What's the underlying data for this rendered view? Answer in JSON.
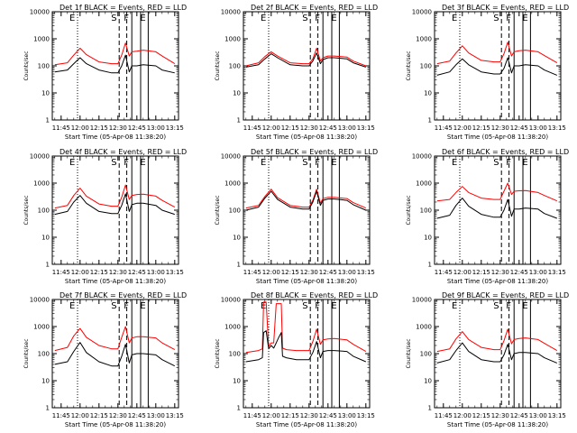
{
  "figure": {
    "xlabel": "Start Time (05-Apr-08 11:38:20)",
    "ylabel": "Counts/sec",
    "x_ticks": [
      "11:45",
      "12:00",
      "12:15",
      "12:30",
      "12:45",
      "13:00",
      "13:15"
    ],
    "y_ticks": [
      "1",
      "10",
      "100",
      "1000",
      "10000"
    ],
    "marker_labels": [
      "E",
      "S",
      "F",
      "E"
    ],
    "colors": {
      "events": "#000000",
      "lld": "#ff0000",
      "axes": "#000000",
      "background": "#ffffff"
    }
  },
  "chart_data": [
    {
      "type": "line",
      "title": "Det 1f BLACK = Events, RED = LLD",
      "xlabel": "Start Time (05-Apr-08 11:38:20)",
      "ylabel": "Counts/sec",
      "yscale": "log",
      "ylim": [
        1,
        10000
      ],
      "xlim": [
        "11:38",
        "13:18"
      ],
      "series": [
        {
          "name": "Events",
          "color": "#000000",
          "x": [
            "11:40",
            "11:50",
            "11:55",
            "12:00",
            "12:05",
            "12:15",
            "12:25",
            "12:30",
            "12:33",
            "12:36",
            "12:39",
            "12:41",
            "12:45",
            "12:50",
            "13:00",
            "13:05",
            "13:15"
          ],
          "y": [
            60,
            70,
            120,
            200,
            120,
            70,
            55,
            55,
            100,
            250,
            60,
            100,
            100,
            110,
            100,
            70,
            55
          ]
        },
        {
          "name": "LLD",
          "color": "#ff0000",
          "x": [
            "11:40",
            "11:50",
            "11:55",
            "12:00",
            "12:05",
            "12:15",
            "12:25",
            "12:30",
            "12:33",
            "12:36",
            "12:39",
            "12:41",
            "12:45",
            "12:50",
            "13:00",
            "13:05",
            "13:15"
          ],
          "y": [
            110,
            130,
            250,
            450,
            260,
            140,
            120,
            120,
            250,
            700,
            230,
            330,
            350,
            380,
            330,
            230,
            120
          ]
        }
      ]
    },
    {
      "type": "line",
      "title": "Det 2f BLACK = Events, RED = LLD",
      "xlabel": "Start Time (05-Apr-08 11:38:20)",
      "ylabel": "Counts/sec",
      "yscale": "log",
      "ylim": [
        1,
        10000
      ],
      "xlim": [
        "11:38",
        "13:18"
      ],
      "series": [
        {
          "name": "Events",
          "color": "#000000",
          "x": [
            "11:40",
            "11:50",
            "11:55",
            "12:00",
            "12:05",
            "12:15",
            "12:25",
            "12:30",
            "12:33",
            "12:36",
            "12:39",
            "12:41",
            "12:45",
            "12:50",
            "13:00",
            "13:05",
            "13:15"
          ],
          "y": [
            90,
            110,
            180,
            280,
            200,
            110,
            100,
            100,
            150,
            300,
            120,
            170,
            200,
            200,
            180,
            130,
            90
          ]
        },
        {
          "name": "LLD",
          "color": "#ff0000",
          "x": [
            "11:40",
            "11:50",
            "11:55",
            "12:00",
            "12:05",
            "12:15",
            "12:25",
            "12:30",
            "12:33",
            "12:36",
            "12:39",
            "12:41",
            "12:45",
            "12:50",
            "13:00",
            "13:05",
            "13:15"
          ],
          "y": [
            100,
            130,
            220,
            330,
            230,
            130,
            120,
            120,
            180,
            450,
            150,
            200,
            230,
            230,
            210,
            150,
            100
          ]
        }
      ]
    },
    {
      "type": "line",
      "title": "Det 3f BLACK = Events, RED = LLD",
      "xlabel": "Start Time (05-Apr-08 11:38:20)",
      "ylabel": "Counts/sec",
      "yscale": "log",
      "ylim": [
        1,
        10000
      ],
      "xlim": [
        "11:38",
        "13:18"
      ],
      "series": [
        {
          "name": "Events",
          "color": "#000000",
          "x": [
            "11:40",
            "11:50",
            "11:55",
            "12:00",
            "12:05",
            "12:15",
            "12:25",
            "12:30",
            "12:33",
            "12:36",
            "12:39",
            "12:41",
            "12:45",
            "12:50",
            "13:00",
            "13:05",
            "13:15"
          ],
          "y": [
            45,
            60,
            110,
            180,
            110,
            60,
            50,
            50,
            80,
            200,
            55,
            100,
            100,
            110,
            100,
            70,
            45
          ]
        },
        {
          "name": "LLD",
          "color": "#ff0000",
          "x": [
            "11:40",
            "11:50",
            "11:55",
            "12:00",
            "12:05",
            "12:15",
            "12:25",
            "12:30",
            "12:33",
            "12:36",
            "12:39",
            "12:41",
            "12:45",
            "12:50",
            "13:00",
            "13:05",
            "13:15"
          ],
          "y": [
            120,
            150,
            300,
            550,
            300,
            160,
            140,
            140,
            280,
            750,
            230,
            330,
            360,
            380,
            330,
            240,
            130
          ]
        }
      ]
    },
    {
      "type": "line",
      "title": "Det 4f BLACK = Events, RED = LLD",
      "xlabel": "Start Time (05-Apr-08 11:38:20)",
      "ylabel": "Counts/sec",
      "yscale": "log",
      "ylim": [
        1,
        10000
      ],
      "xlim": [
        "11:38",
        "13:18"
      ],
      "series": [
        {
          "name": "Events",
          "color": "#000000",
          "x": [
            "11:40",
            "11:50",
            "11:55",
            "12:00",
            "12:05",
            "12:15",
            "12:25",
            "12:30",
            "12:33",
            "12:36",
            "12:39",
            "12:41",
            "12:45",
            "12:50",
            "13:00",
            "13:05",
            "13:15"
          ],
          "y": [
            70,
            90,
            200,
            350,
            180,
            90,
            75,
            75,
            150,
            400,
            90,
            160,
            180,
            180,
            150,
            100,
            70
          ]
        },
        {
          "name": "LLD",
          "color": "#ff0000",
          "x": [
            "11:40",
            "11:50",
            "11:55",
            "12:00",
            "12:05",
            "12:15",
            "12:25",
            "12:30",
            "12:33",
            "12:36",
            "12:39",
            "12:41",
            "12:45",
            "12:50",
            "13:00",
            "13:05",
            "13:15"
          ],
          "y": [
            120,
            150,
            350,
            650,
            330,
            170,
            140,
            140,
            300,
            850,
            250,
            350,
            380,
            390,
            330,
            230,
            130
          ]
        }
      ]
    },
    {
      "type": "line",
      "title": "Det 5f BLACK = Events, RED = LLD",
      "xlabel": "Start Time (05-Apr-08 11:38:20)",
      "ylabel": "Counts/sec",
      "yscale": "log",
      "ylim": [
        1,
        10000
      ],
      "xlim": [
        "11:38",
        "13:18"
      ],
      "series": [
        {
          "name": "Events",
          "color": "#000000",
          "x": [
            "11:40",
            "11:50",
            "11:55",
            "12:00",
            "12:05",
            "12:15",
            "12:25",
            "12:30",
            "12:33",
            "12:36",
            "12:39",
            "12:41",
            "12:45",
            "12:50",
            "13:00",
            "13:05",
            "13:15"
          ],
          "y": [
            100,
            130,
            280,
            500,
            250,
            130,
            110,
            110,
            200,
            500,
            150,
            230,
            260,
            260,
            230,
            160,
            100
          ]
        },
        {
          "name": "LLD",
          "color": "#ff0000",
          "x": [
            "11:40",
            "11:50",
            "11:55",
            "12:00",
            "12:05",
            "12:15",
            "12:25",
            "12:30",
            "12:33",
            "12:36",
            "12:39",
            "12:41",
            "12:45",
            "12:50",
            "13:00",
            "13:05",
            "13:15"
          ],
          "y": [
            120,
            150,
            320,
            600,
            290,
            150,
            130,
            130,
            230,
            600,
            180,
            270,
            300,
            300,
            270,
            190,
            120
          ]
        }
      ]
    },
    {
      "type": "line",
      "title": "Det 6f BLACK = Events, RED = LLD",
      "xlabel": "Start Time (05-Apr-08 11:38:20)",
      "ylabel": "Counts/sec",
      "yscale": "log",
      "ylim": [
        1,
        10000
      ],
      "xlim": [
        "11:38",
        "13:18"
      ],
      "series": [
        {
          "name": "Events",
          "color": "#000000",
          "x": [
            "11:40",
            "11:50",
            "11:55",
            "12:00",
            "12:05",
            "12:15",
            "12:25",
            "12:30",
            "12:33",
            "12:36",
            "12:39",
            "12:41",
            "12:45",
            "12:50",
            "13:00",
            "13:05",
            "13:15"
          ],
          "y": [
            50,
            65,
            150,
            280,
            140,
            70,
            55,
            55,
            100,
            250,
            60,
            110,
            110,
            120,
            110,
            75,
            50
          ]
        },
        {
          "name": "LLD",
          "color": "#ff0000",
          "x": [
            "11:40",
            "11:50",
            "11:55",
            "12:00",
            "12:05",
            "12:15",
            "12:25",
            "12:30",
            "12:33",
            "12:36",
            "12:39",
            "12:41",
            "12:45",
            "12:50",
            "13:00",
            "13:05",
            "13:15"
          ],
          "y": [
            220,
            250,
            450,
            750,
            450,
            280,
            250,
            250,
            500,
            1000,
            380,
            500,
            520,
            530,
            450,
            350,
            220
          ]
        }
      ]
    },
    {
      "type": "line",
      "title": "Det 7f BLACK = Events, RED = LLD",
      "xlabel": "Start Time (05-Apr-08 11:38:20)",
      "ylabel": "Counts/sec",
      "yscale": "log",
      "ylim": [
        1,
        10000
      ],
      "xlim": [
        "11:38",
        "13:18"
      ],
      "series": [
        {
          "name": "Events",
          "color": "#000000",
          "x": [
            "11:40",
            "11:50",
            "11:55",
            "12:00",
            "12:05",
            "12:15",
            "12:25",
            "12:30",
            "12:33",
            "12:36",
            "12:39",
            "12:41",
            "12:45",
            "12:50",
            "13:00",
            "13:05",
            "13:15"
          ],
          "y": [
            40,
            50,
            120,
            260,
            110,
            50,
            35,
            35,
            80,
            220,
            45,
            90,
            100,
            100,
            90,
            60,
            35
          ]
        },
        {
          "name": "LLD",
          "color": "#ff0000",
          "x": [
            "11:40",
            "11:50",
            "11:55",
            "12:00",
            "12:05",
            "12:15",
            "12:25",
            "12:30",
            "12:33",
            "12:36",
            "12:39",
            "12:41",
            "12:45",
            "12:50",
            "13:00",
            "13:05",
            "13:15"
          ],
          "y": [
            130,
            170,
            450,
            850,
            400,
            200,
            150,
            150,
            400,
            1000,
            250,
            380,
            420,
            420,
            380,
            250,
            140
          ]
        }
      ]
    },
    {
      "type": "line",
      "title": "Det 8f BLACK = Events, RED = LLD",
      "xlabel": "Start Time (05-Apr-08 11:38:20)",
      "ylabel": "Counts/sec",
      "yscale": "log",
      "ylim": [
        1,
        10000
      ],
      "xlim": [
        "11:38",
        "13:18"
      ],
      "series": [
        {
          "name": "Events",
          "color": "#000000",
          "x": [
            "11:40",
            "11:50",
            "11:53",
            "11:54",
            "11:56",
            "11:58",
            "12:00",
            "12:02",
            "12:04",
            "12:06",
            "12:08",
            "12:09",
            "12:12",
            "12:20",
            "12:30",
            "12:33",
            "12:36",
            "12:39",
            "12:41",
            "12:45",
            "12:50",
            "13:00",
            "13:05",
            "13:15"
          ],
          "y": [
            50,
            60,
            70,
            600,
            700,
            150,
            200,
            160,
            250,
            400,
            600,
            80,
            70,
            60,
            60,
            110,
            280,
            70,
            120,
            130,
            130,
            120,
            80,
            50
          ]
        },
        {
          "name": "LLD",
          "color": "#ff0000",
          "x": [
            "11:40",
            "11:50",
            "11:53",
            "11:54",
            "11:56",
            "11:58",
            "12:00",
            "12:02",
            "12:04",
            "12:06",
            "12:08",
            "12:09",
            "12:12",
            "12:20",
            "12:30",
            "12:33",
            "12:36",
            "12:39",
            "12:41",
            "12:45",
            "12:50",
            "13:00",
            "13:05",
            "13:15"
          ],
          "y": [
            110,
            130,
            150,
            8000,
            8000,
            180,
            250,
            250,
            7000,
            7000,
            7000,
            160,
            140,
            130,
            130,
            280,
            800,
            220,
            320,
            350,
            360,
            320,
            220,
            120
          ]
        }
      ]
    },
    {
      "type": "line",
      "title": "Det 9f BLACK = Events, RED = LLD",
      "xlabel": "Start Time (05-Apr-08 11:38:20)",
      "ylabel": "Counts/sec",
      "yscale": "log",
      "ylim": [
        1,
        10000
      ],
      "xlim": [
        "11:38",
        "13:18"
      ],
      "series": [
        {
          "name": "Events",
          "color": "#000000",
          "x": [
            "11:40",
            "11:50",
            "11:55",
            "12:00",
            "12:05",
            "12:15",
            "12:25",
            "12:30",
            "12:33",
            "12:36",
            "12:39",
            "12:41",
            "12:45",
            "12:50",
            "13:00",
            "13:05",
            "13:15"
          ],
          "y": [
            45,
            60,
            130,
            250,
            120,
            60,
            50,
            50,
            90,
            220,
            60,
            100,
            110,
            110,
            100,
            70,
            45
          ]
        },
        {
          "name": "LLD",
          "color": "#ff0000",
          "x": [
            "11:40",
            "11:50",
            "11:55",
            "12:00",
            "12:05",
            "12:15",
            "12:25",
            "12:30",
            "12:33",
            "12:36",
            "12:39",
            "12:41",
            "12:45",
            "12:50",
            "13:00",
            "13:05",
            "13:15"
          ],
          "y": [
            120,
            150,
            350,
            650,
            330,
            170,
            140,
            140,
            300,
            800,
            230,
            330,
            360,
            380,
            330,
            240,
            130
          ]
        }
      ]
    }
  ]
}
